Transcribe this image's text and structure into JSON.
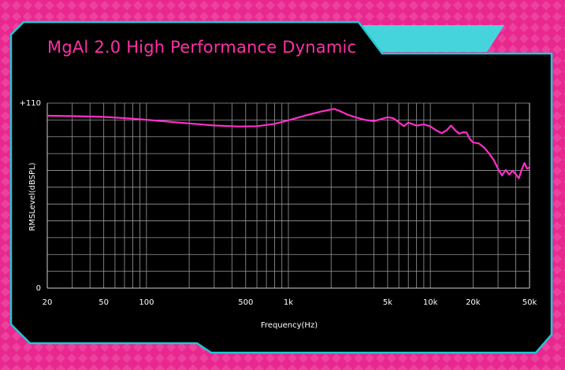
{
  "colors": {
    "background": "#e8288f",
    "panel": "#000000",
    "panel_border": "#1ec8d6",
    "tab": "#46d4dc",
    "curve": "#ff2fc8",
    "title": "#ff2fa8",
    "grid": "#9a9a9a"
  },
  "chart_data": {
    "type": "line",
    "title": "MgAl 2.0 High Performance Dynamic",
    "xlabel": "Frequency(Hz)",
    "ylabel": "RMSLevel(dBSPL)",
    "x_scale": "log",
    "xlim": [
      20,
      50000
    ],
    "ylim": [
      0,
      110
    ],
    "grid": true,
    "x_ticks": [
      {
        "value": 20,
        "label": "20"
      },
      {
        "value": 50,
        "label": "50"
      },
      {
        "value": 100,
        "label": "100"
      },
      {
        "value": 500,
        "label": "500"
      },
      {
        "value": 1000,
        "label": "1k"
      },
      {
        "value": 5000,
        "label": "5k"
      },
      {
        "value": 10000,
        "label": "10k"
      },
      {
        "value": 20000,
        "label": "20k"
      },
      {
        "value": 50000,
        "label": "50k"
      }
    ],
    "y_ticks": [
      {
        "value": 110,
        "label": "+110"
      },
      {
        "value": 0,
        "label": "0"
      }
    ],
    "series": [
      {
        "x": [
          20,
          30,
          50,
          80,
          120,
          200,
          300,
          450,
          600,
          800,
          1000,
          1300,
          1700,
          2100,
          2300,
          2600,
          3000,
          3500,
          4000,
          4500,
          5000,
          5500,
          6000,
          6500,
          7000,
          7500,
          8000,
          9000,
          10000,
          11000,
          12000,
          13000,
          14000,
          15000,
          16000,
          17000,
          18000,
          19000,
          20000,
          22000,
          24000,
          26000,
          28000,
          30000,
          32000,
          34000,
          36000,
          38000,
          40000,
          42000,
          44000,
          46000,
          48000,
          50000
        ],
        "y": [
          102.5,
          102.3,
          101.8,
          100.8,
          99.5,
          97.9,
          96.7,
          96.1,
          96.3,
          97.7,
          99.8,
          102.5,
          105.0,
          106.6,
          105.3,
          103.2,
          101.5,
          100.0,
          99.3,
          100.5,
          101.6,
          101.0,
          98.6,
          96.3,
          98.4,
          97.5,
          96.6,
          97.4,
          96.2,
          93.8,
          92.1,
          93.8,
          96.6,
          93.8,
          91.8,
          92.7,
          92.5,
          88.6,
          86.7,
          86.0,
          83.5,
          80.0,
          76.2,
          71.0,
          67.0,
          70.3,
          67.5,
          69.8,
          67.8,
          65.3,
          70.4,
          74.4,
          71.0,
          71.8
        ]
      }
    ]
  }
}
